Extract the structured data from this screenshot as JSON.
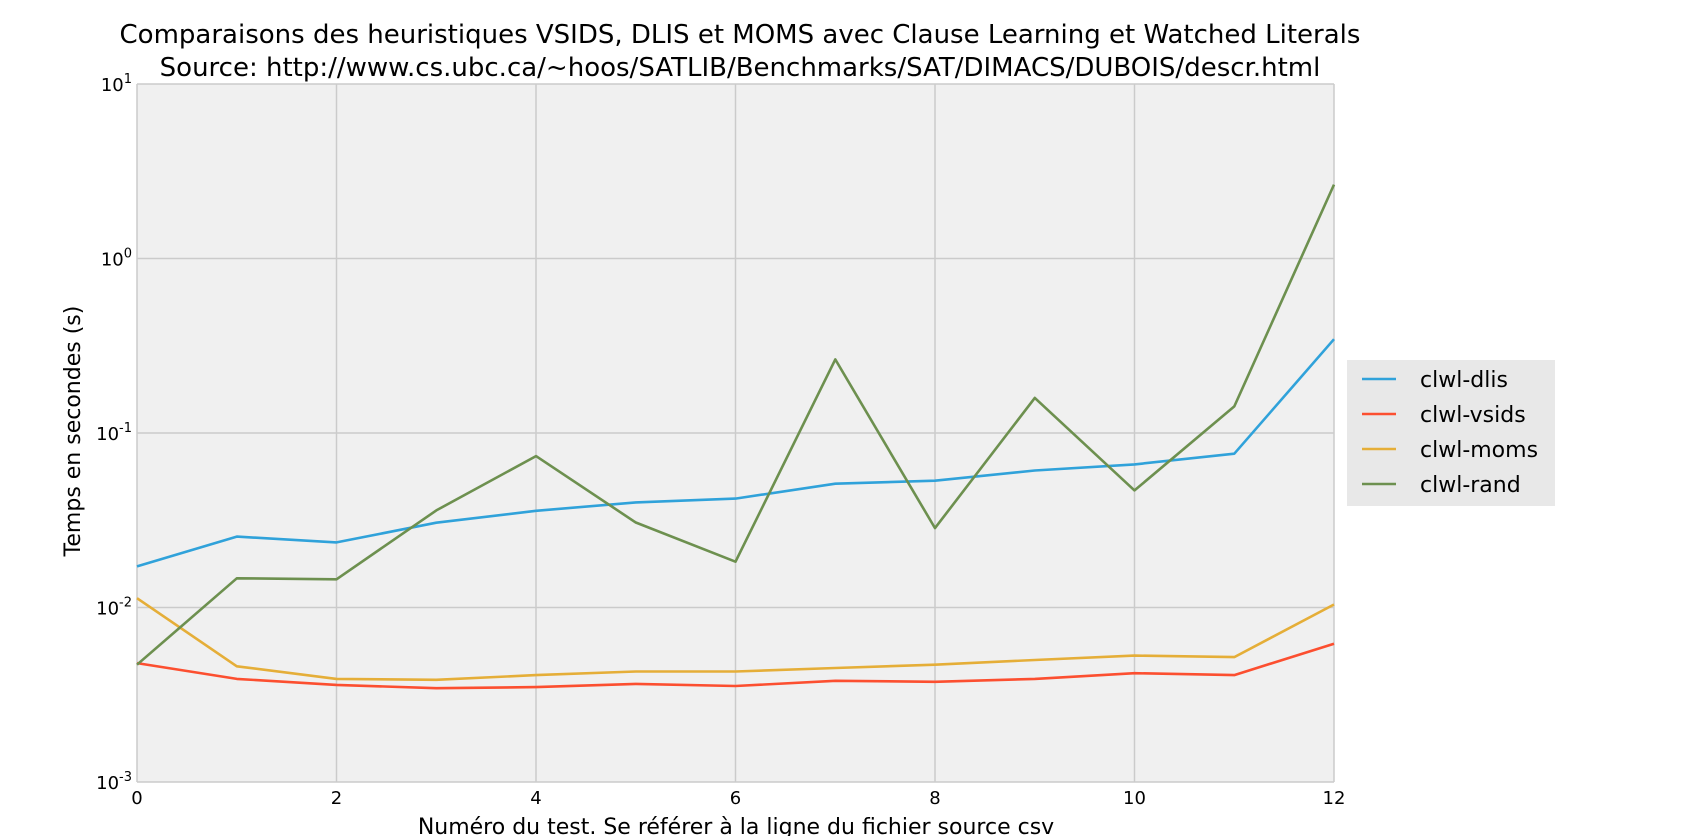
{
  "chart_data": {
    "type": "line",
    "title": "Comparaisons des heuristiques VSIDS, DLIS et MOMS avec Clause Learning et Watched Literals",
    "subtitle": "Source: http://www.cs.ubc.ca/~hoos/SATLIB/Benchmarks/SAT/DIMACS/DUBOIS/descr.html",
    "xlabel": "Numéro du test. Se référer à la ligne du fichier source csv",
    "ylabel": "Temps en secondes (s)",
    "xlim": [
      0,
      12
    ],
    "ylim": [
      0.001,
      10
    ],
    "yscale": "log",
    "grid": true,
    "legend_position": "right",
    "x_ticks": [
      {
        "value": 0,
        "label": "0"
      },
      {
        "value": 2,
        "label": "2"
      },
      {
        "value": 4,
        "label": "4"
      },
      {
        "value": 6,
        "label": "6"
      },
      {
        "value": 8,
        "label": "8"
      },
      {
        "value": 10,
        "label": "10"
      },
      {
        "value": 12,
        "label": "12"
      }
    ],
    "y_ticks": [
      {
        "value": 0.001,
        "base": "10",
        "exp": "-3"
      },
      {
        "value": 0.01,
        "base": "10",
        "exp": "-2"
      },
      {
        "value": 0.1,
        "base": "10",
        "exp": "-1"
      },
      {
        "value": 1,
        "base": "10",
        "exp": "0"
      },
      {
        "value": 10,
        "base": "10",
        "exp": "1"
      }
    ],
    "x": [
      0,
      1,
      2,
      3,
      4,
      5,
      6,
      7,
      8,
      9,
      10,
      11,
      12
    ],
    "series": [
      {
        "name": "clwl-dlis",
        "color": "#30a2da",
        "values": [
          0.0172,
          0.0255,
          0.0236,
          0.0306,
          0.0358,
          0.04,
          0.0421,
          0.0512,
          0.0533,
          0.061,
          0.0661,
          0.0761,
          0.345
        ]
      },
      {
        "name": "clwl-vsids",
        "color": "#fc4f30",
        "values": [
          0.0048,
          0.0039,
          0.0036,
          0.00345,
          0.0035,
          0.00365,
          0.00355,
          0.0038,
          0.00375,
          0.0039,
          0.0042,
          0.0041,
          0.0062
        ]
      },
      {
        "name": "clwl-moms",
        "color": "#e5ae38",
        "values": [
          0.0113,
          0.0046,
          0.0039,
          0.00385,
          0.0041,
          0.0043,
          0.0043,
          0.0045,
          0.0047,
          0.005,
          0.0053,
          0.0052,
          0.0104
        ]
      },
      {
        "name": "clwl-rand",
        "color": "#6d904f",
        "values": [
          0.0047,
          0.0147,
          0.0145,
          0.036,
          0.0737,
          0.0307,
          0.0183,
          0.264,
          0.0285,
          0.159,
          0.0469,
          0.142,
          2.65
        ]
      }
    ]
  }
}
